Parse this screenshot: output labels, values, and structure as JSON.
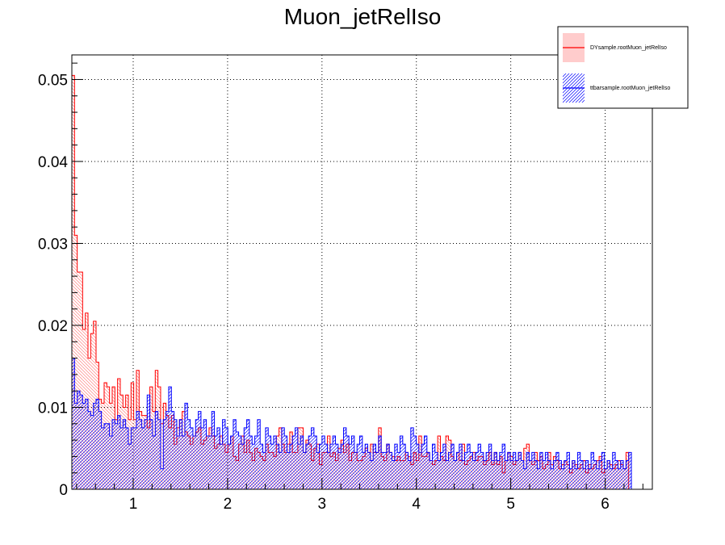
{
  "chart_data": {
    "type": "bar",
    "title": "Muon_jetRelIso",
    "xlabel": "",
    "ylabel": "",
    "xlim": [
      0.35,
      6.5
    ],
    "ylim": [
      0,
      0.053
    ],
    "x_ticks": [
      1,
      2,
      3,
      4,
      5,
      6
    ],
    "y_ticks": [
      0,
      0.01,
      0.02,
      0.03,
      0.04,
      0.05
    ],
    "y_tick_labels": [
      "0",
      "0.01",
      "0.02",
      "0.03",
      "0.04",
      "0.05"
    ],
    "grid": true,
    "legend_position": "top-right",
    "bin_width": 0.0285,
    "series": [
      {
        "name": "DYsample.rootMuon_jetRelIso",
        "color": "#ff0000",
        "fill_color": "#ffcccc",
        "values": [
          0.0505,
          0.031,
          0.0265,
          0.0265,
          0.0195,
          0.0215,
          0.016,
          0.019,
          0.0205,
          0.0155,
          0.011,
          0.0105,
          0.013,
          0.0125,
          0.0105,
          0.0125,
          0.0085,
          0.0135,
          0.0115,
          0.01,
          0.0115,
          0.0085,
          0.013,
          0.0085,
          0.0145,
          0.0095,
          0.009,
          0.009,
          0.0075,
          0.0125,
          0.0095,
          0.0145,
          0.0125,
          0.008,
          0.0105,
          0.009,
          0.0075,
          0.009,
          0.0055,
          0.0075,
          0.0085,
          0.0095,
          0.007,
          0.0065,
          0.0055,
          0.0065,
          0.007,
          0.0075,
          0.0055,
          0.006,
          0.0065,
          0.0075,
          0.0065,
          0.005,
          0.0055,
          0.0065,
          0.0055,
          0.0045,
          0.0055,
          0.0065,
          0.004,
          0.0035,
          0.0055,
          0.0065,
          0.0045,
          0.006,
          0.0045,
          0.0035,
          0.005,
          0.0045,
          0.004,
          0.0035,
          0.0055,
          0.0045,
          0.0045,
          0.004,
          0.0065,
          0.0075,
          0.0055,
          0.0045,
          0.0055,
          0.007,
          0.0045,
          0.0045,
          0.0075,
          0.0075,
          0.0045,
          0.006,
          0.0055,
          0.0035,
          0.005,
          0.0055,
          0.003,
          0.0045,
          0.0045,
          0.0065,
          0.004,
          0.0045,
          0.0035,
          0.005,
          0.006,
          0.0045,
          0.0055,
          0.0035,
          0.0045,
          0.0045,
          0.0035,
          0.0035,
          0.004,
          0.005,
          0.0045,
          0.0055,
          0.0045,
          0.0045,
          0.0075,
          0.004,
          0.0035,
          0.0055,
          0.0045,
          0.004,
          0.0035,
          0.004,
          0.0035,
          0.0035,
          0.0045,
          0.004,
          0.003,
          0.0045,
          0.0035,
          0.0065,
          0.004,
          0.004,
          0.0045,
          0.0035,
          0.003,
          0.0035,
          0.0065,
          0.004,
          0.0035,
          0.0065,
          0.006,
          0.004,
          0.0035,
          0.0045,
          0.0035,
          0.0055,
          0.003,
          0.0035,
          0.004,
          0.0045,
          0.0035,
          0.004,
          0.004,
          0.003,
          0.0035,
          0.0045,
          0.003,
          0.0045,
          0.003,
          0.004,
          0.002,
          0.0035,
          0.0045,
          0.004,
          0.003,
          0.0035,
          0.0045,
          0.0035,
          0.005,
          0.0055,
          0.0035,
          0.003,
          0.0045,
          0.0035,
          0.004,
          0.0025,
          0.003,
          0.0045,
          0.003,
          0.004,
          0.0035,
          0.0025,
          0.003,
          0.0035,
          0.003,
          0.002,
          0.0035,
          0.003,
          0.0025,
          0.003,
          0.0035,
          0.002,
          0.003,
          0.0025,
          0.003,
          0.0035,
          0.004,
          0.002,
          0.0025,
          0.0035,
          0.003,
          0.0025,
          0.003,
          0.0035,
          0.003,
          0.0025,
          0.0045
        ]
      },
      {
        "name": "ttbarsample.rootMuon_jetRelIso",
        "color": "#0000ff",
        "fill_color": "#0000ff",
        "values": [
          0.016,
          0.0105,
          0.012,
          0.0115,
          0.0105,
          0.011,
          0.0095,
          0.009,
          0.0105,
          0.011,
          0.0095,
          0.0075,
          0.008,
          0.008,
          0.0065,
          0.0085,
          0.008,
          0.009,
          0.0075,
          0.0085,
          0.0075,
          0.0055,
          0.0075,
          0.0075,
          0.0095,
          0.0085,
          0.0075,
          0.0085,
          0.0115,
          0.0085,
          0.0065,
          0.0095,
          0.0085,
          0.0025,
          0.0085,
          0.0095,
          0.0125,
          0.0095,
          0.0085,
          0.0065,
          0.0085,
          0.0065,
          0.0105,
          0.0085,
          0.0075,
          0.0065,
          0.0085,
          0.0095,
          0.0075,
          0.0085,
          0.0065,
          0.0065,
          0.0095,
          0.0065,
          0.0075,
          0.0055,
          0.0085,
          0.0075,
          0.0055,
          0.0065,
          0.0085,
          0.007,
          0.0065,
          0.0055,
          0.0075,
          0.0085,
          0.0065,
          0.0055,
          0.0065,
          0.0085,
          0.0055,
          0.0045,
          0.0075,
          0.0065,
          0.0055,
          0.0065,
          0.0055,
          0.0045,
          0.0075,
          0.0065,
          0.0045,
          0.0055,
          0.0065,
          0.0075,
          0.0055,
          0.0065,
          0.0045,
          0.0055,
          0.0065,
          0.0075,
          0.0065,
          0.0045,
          0.0055,
          0.0065,
          0.0055,
          0.0045,
          0.0055,
          0.0065,
          0.0055,
          0.0045,
          0.0055,
          0.0075,
          0.0065,
          0.0055,
          0.0065,
          0.0045,
          0.0055,
          0.0065,
          0.0045,
          0.0055,
          0.0045,
          0.0035,
          0.0055,
          0.0045,
          0.0065,
          0.0045,
          0.0045,
          0.0055,
          0.0045,
          0.0035,
          0.0055,
          0.0045,
          0.0065,
          0.0055,
          0.0045,
          0.0035,
          0.0075,
          0.0065,
          0.0055,
          0.0045,
          0.0055,
          0.0065,
          0.0045,
          0.0035,
          0.0055,
          0.0045,
          0.0035,
          0.0045,
          0.0055,
          0.0035,
          0.0045,
          0.0055,
          0.0035,
          0.0045,
          0.0055,
          0.0035,
          0.0045,
          0.0055,
          0.0045,
          0.0035,
          0.0045,
          0.0055,
          0.0045,
          0.0035,
          0.0045,
          0.0055,
          0.0035,
          0.0045,
          0.0035,
          0.0045,
          0.0055,
          0.0035,
          0.0045,
          0.0035,
          0.0045,
          0.0035,
          0.0045,
          0.0035,
          0.0025,
          0.0045,
          0.0035,
          0.0045,
          0.0035,
          0.0025,
          0.0045,
          0.0035,
          0.0045,
          0.0035,
          0.0025,
          0.0035,
          0.0045,
          0.0035,
          0.0025,
          0.0035,
          0.0045,
          0.0025,
          0.0035,
          0.0025,
          0.0045,
          0.0035,
          0.0025,
          0.0035,
          0.0025,
          0.0045,
          0.0035,
          0.0025,
          0.0035,
          0.0045,
          0.0025,
          0.0035,
          0.0025,
          0.0045,
          0.0035,
          0.0025,
          0.0035,
          0.0025,
          0.0035,
          0.0045
        ]
      }
    ]
  }
}
